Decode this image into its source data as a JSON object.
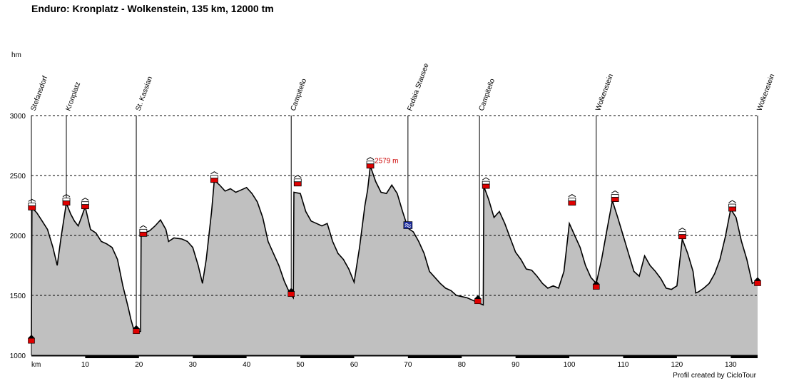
{
  "title": "Enduro: Kronplatz - Wolkenstein, 135 km, 12000 tm",
  "credit": "Profil created by CicloTour",
  "chart_data": {
    "type": "area",
    "title": "Enduro: Kronplatz - Wolkenstein, 135 km, 12000 tm",
    "ylabel": "hm",
    "xlabel": "km",
    "xlim": [
      0,
      135
    ],
    "ylim": [
      1000,
      3000
    ],
    "yticks": [
      1000,
      1500,
      2000,
      2500,
      3000
    ],
    "xticks": [
      10,
      20,
      30,
      40,
      50,
      60,
      70,
      80,
      90,
      100,
      110,
      120,
      130
    ],
    "grid": "horizontal dashed",
    "colors": {
      "fill": "#c0c0c0",
      "line": "#000000",
      "marker": "#e00000",
      "summit_label": "#cc0000",
      "lake_marker": "#1f2f9f"
    },
    "profile": [
      [
        0,
        1140
      ],
      [
        0.1,
        2230
      ],
      [
        1,
        2190
      ],
      [
        2,
        2120
      ],
      [
        3,
        2050
      ],
      [
        4,
        1900
      ],
      [
        4.8,
        1750
      ],
      [
        5.5,
        1980
      ],
      [
        6.5,
        2270
      ],
      [
        7.3,
        2180
      ],
      [
        8,
        2120
      ],
      [
        8.7,
        2080
      ],
      [
        9.3,
        2150
      ],
      [
        10,
        2240
      ],
      [
        11,
        2050
      ],
      [
        12,
        2020
      ],
      [
        13,
        1950
      ],
      [
        14,
        1930
      ],
      [
        15,
        1900
      ],
      [
        16,
        1800
      ],
      [
        17,
        1580
      ],
      [
        18,
        1400
      ],
      [
        18.5,
        1300
      ],
      [
        19,
        1220
      ],
      [
        19.5,
        1190
      ],
      [
        20.3,
        1200
      ],
      [
        20.4,
        2000
      ],
      [
        21,
        2020
      ],
      [
        22,
        2040
      ],
      [
        23,
        2080
      ],
      [
        24,
        2130
      ],
      [
        25,
        2050
      ],
      [
        25.5,
        1950
      ],
      [
        26.5,
        1980
      ],
      [
        28,
        1970
      ],
      [
        29,
        1950
      ],
      [
        30,
        1900
      ],
      [
        31,
        1750
      ],
      [
        31.8,
        1600
      ],
      [
        32.5,
        1800
      ],
      [
        33.5,
        2200
      ],
      [
        34,
        2460
      ],
      [
        35,
        2420
      ],
      [
        36,
        2370
      ],
      [
        37,
        2390
      ],
      [
        38,
        2360
      ],
      [
        39,
        2380
      ],
      [
        40,
        2400
      ],
      [
        41,
        2350
      ],
      [
        42,
        2280
      ],
      [
        43,
        2150
      ],
      [
        44,
        1950
      ],
      [
        45,
        1850
      ],
      [
        46,
        1750
      ],
      [
        47,
        1620
      ],
      [
        48,
        1520
      ],
      [
        48.7,
        1480
      ],
      [
        48.8,
        2360
      ],
      [
        50,
        2350
      ],
      [
        51,
        2200
      ],
      [
        52,
        2120
      ],
      [
        53,
        2100
      ],
      [
        54,
        2080
      ],
      [
        55,
        2100
      ],
      [
        56,
        1950
      ],
      [
        57,
        1850
      ],
      [
        58,
        1800
      ],
      [
        59,
        1720
      ],
      [
        60,
        1610
      ],
      [
        61,
        1900
      ],
      [
        62,
        2250
      ],
      [
        62.5,
        2380
      ],
      [
        63,
        2579
      ],
      [
        64,
        2450
      ],
      [
        65,
        2360
      ],
      [
        66,
        2350
      ],
      [
        67,
        2420
      ],
      [
        68,
        2350
      ],
      [
        69,
        2200
      ],
      [
        70,
        2060
      ],
      [
        71,
        2030
      ],
      [
        72,
        1950
      ],
      [
        73,
        1850
      ],
      [
        74,
        1700
      ],
      [
        75,
        1650
      ],
      [
        76,
        1600
      ],
      [
        77,
        1560
      ],
      [
        78,
        1540
      ],
      [
        79,
        1500
      ],
      [
        80,
        1490
      ],
      [
        81,
        1480
      ],
      [
        82,
        1460
      ],
      [
        83,
        1440
      ],
      [
        84,
        1420
      ],
      [
        84.1,
        2410
      ],
      [
        85,
        2300
      ],
      [
        86,
        2150
      ],
      [
        87,
        2200
      ],
      [
        88,
        2100
      ],
      [
        89,
        1980
      ],
      [
        90,
        1860
      ],
      [
        91,
        1800
      ],
      [
        92,
        1720
      ],
      [
        93,
        1710
      ],
      [
        94,
        1660
      ],
      [
        95,
        1600
      ],
      [
        96,
        1560
      ],
      [
        97,
        1580
      ],
      [
        98,
        1560
      ],
      [
        99,
        1700
      ],
      [
        100,
        2100
      ],
      [
        101,
        2000
      ],
      [
        102,
        1900
      ],
      [
        103,
        1750
      ],
      [
        104,
        1650
      ],
      [
        105,
        1600
      ],
      [
        106,
        1800
      ],
      [
        107,
        2050
      ],
      [
        108,
        2290
      ],
      [
        109,
        2150
      ],
      [
        110,
        2000
      ],
      [
        111,
        1850
      ],
      [
        112,
        1700
      ],
      [
        113,
        1660
      ],
      [
        114,
        1830
      ],
      [
        115,
        1750
      ],
      [
        116,
        1700
      ],
      [
        117,
        1640
      ],
      [
        118,
        1560
      ],
      [
        119,
        1550
      ],
      [
        120,
        1580
      ],
      [
        121,
        1970
      ],
      [
        122,
        1850
      ],
      [
        123,
        1700
      ],
      [
        123.5,
        1520
      ],
      [
        124,
        1530
      ],
      [
        125,
        1560
      ],
      [
        126,
        1600
      ],
      [
        127,
        1680
      ],
      [
        128,
        1800
      ],
      [
        129,
        1990
      ],
      [
        130,
        2220
      ],
      [
        131,
        2150
      ],
      [
        132,
        1950
      ],
      [
        133,
        1800
      ],
      [
        134,
        1600
      ],
      [
        135,
        1620
      ]
    ],
    "waypoints": [
      {
        "name": "Stefansdorf",
        "km": 0,
        "elevation": 1140,
        "line_top": 3000
      },
      {
        "name": "Kronplatz",
        "km": 6.5,
        "elevation": 2270,
        "line_top": 3000
      },
      {
        "name": "St. Kassian",
        "km": 19.5,
        "elevation": 1200,
        "line_top": 3000
      },
      {
        "name": "Campitello",
        "km": 48.3,
        "elevation": 1500,
        "line_top": 3000
      },
      {
        "name": "Fedaia Stausee",
        "km": 70,
        "elevation": 2060,
        "line_top": 3000
      },
      {
        "name": "Campitello",
        "km": 83.3,
        "elevation": 1460,
        "line_top": 3000
      },
      {
        "name": "Wolkenstein",
        "km": 105,
        "elevation": 1600,
        "line_top": 3000
      },
      {
        "name": "Wolkenstein",
        "km": 136.5,
        "elevation": 1620,
        "line_top": 3000
      }
    ],
    "lifts": [
      {
        "km": 0.1,
        "elevation": 2230
      },
      {
        "km": 6.5,
        "elevation": 2270
      },
      {
        "km": 10,
        "elevation": 2240
      },
      {
        "km": 20.8,
        "elevation": 2010
      },
      {
        "km": 34,
        "elevation": 2460
      },
      {
        "km": 49.5,
        "elevation": 2430
      },
      {
        "km": 63,
        "elevation": 2579
      },
      {
        "km": 84.5,
        "elevation": 2410
      },
      {
        "km": 100.5,
        "elevation": 2270
      },
      {
        "km": 108.5,
        "elevation": 2300
      },
      {
        "km": 121,
        "elevation": 1990
      },
      {
        "km": 130.3,
        "elevation": 2220
      }
    ],
    "valley_markers": [
      {
        "km": 0,
        "elevation": 1130
      },
      {
        "km": 19.5,
        "elevation": 1210
      },
      {
        "km": 48.3,
        "elevation": 1520
      },
      {
        "km": 83,
        "elevation": 1460
      },
      {
        "km": 105,
        "elevation": 1580
      },
      {
        "km": 136.5,
        "elevation": 1610
      }
    ],
    "lake_marker": {
      "km": 70,
      "elevation": 2080
    },
    "summit_label": {
      "text": "2579 m",
      "km": 63,
      "elevation": 2579
    }
  }
}
